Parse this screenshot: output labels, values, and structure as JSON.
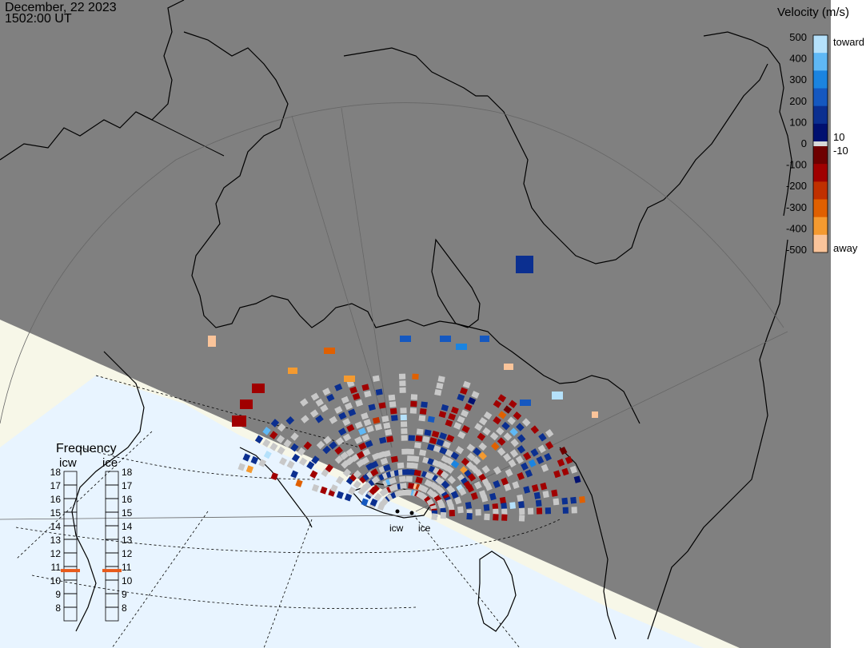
{
  "header": {
    "date": "December, 22 2023",
    "time": "1502:00 UT"
  },
  "colorbar": {
    "title": "Velocity (m/s)",
    "ticks": [
      "500",
      "400",
      "300",
      "200",
      "100",
      "0",
      "-100",
      "-200",
      "-300",
      "-400",
      "-500"
    ],
    "right_labels": {
      "toward": "toward",
      "pos_threshold": "10",
      "neg_threshold": "-10",
      "away": "away"
    },
    "colors": [
      "#b5e1fb",
      "#5fb8f5",
      "#1b84e0",
      "#1558c0",
      "#0b2f90",
      "#001070",
      "#6e0000",
      "#a00000",
      "#c03000",
      "#e06000",
      "#f49a30",
      "#fac49a"
    ]
  },
  "radars": [
    {
      "name": "icw"
    },
    {
      "name": "ice"
    }
  ],
  "frequency": {
    "title": "Frequency",
    "channels": [
      "icw",
      "ice"
    ],
    "scale": [
      "18",
      "17",
      "16",
      "15",
      "14",
      "13",
      "12",
      "11",
      "10",
      "9",
      "8"
    ],
    "selected_mhz": [
      10.7,
      10.7
    ],
    "marker_color": "#e85a1a"
  },
  "colors": {
    "night": "#808080",
    "day_land": "#f7f7e8",
    "day_ocean": "#e8f4ff",
    "ground_scatter": "#c8c8c8",
    "coastline": "#000000"
  }
}
